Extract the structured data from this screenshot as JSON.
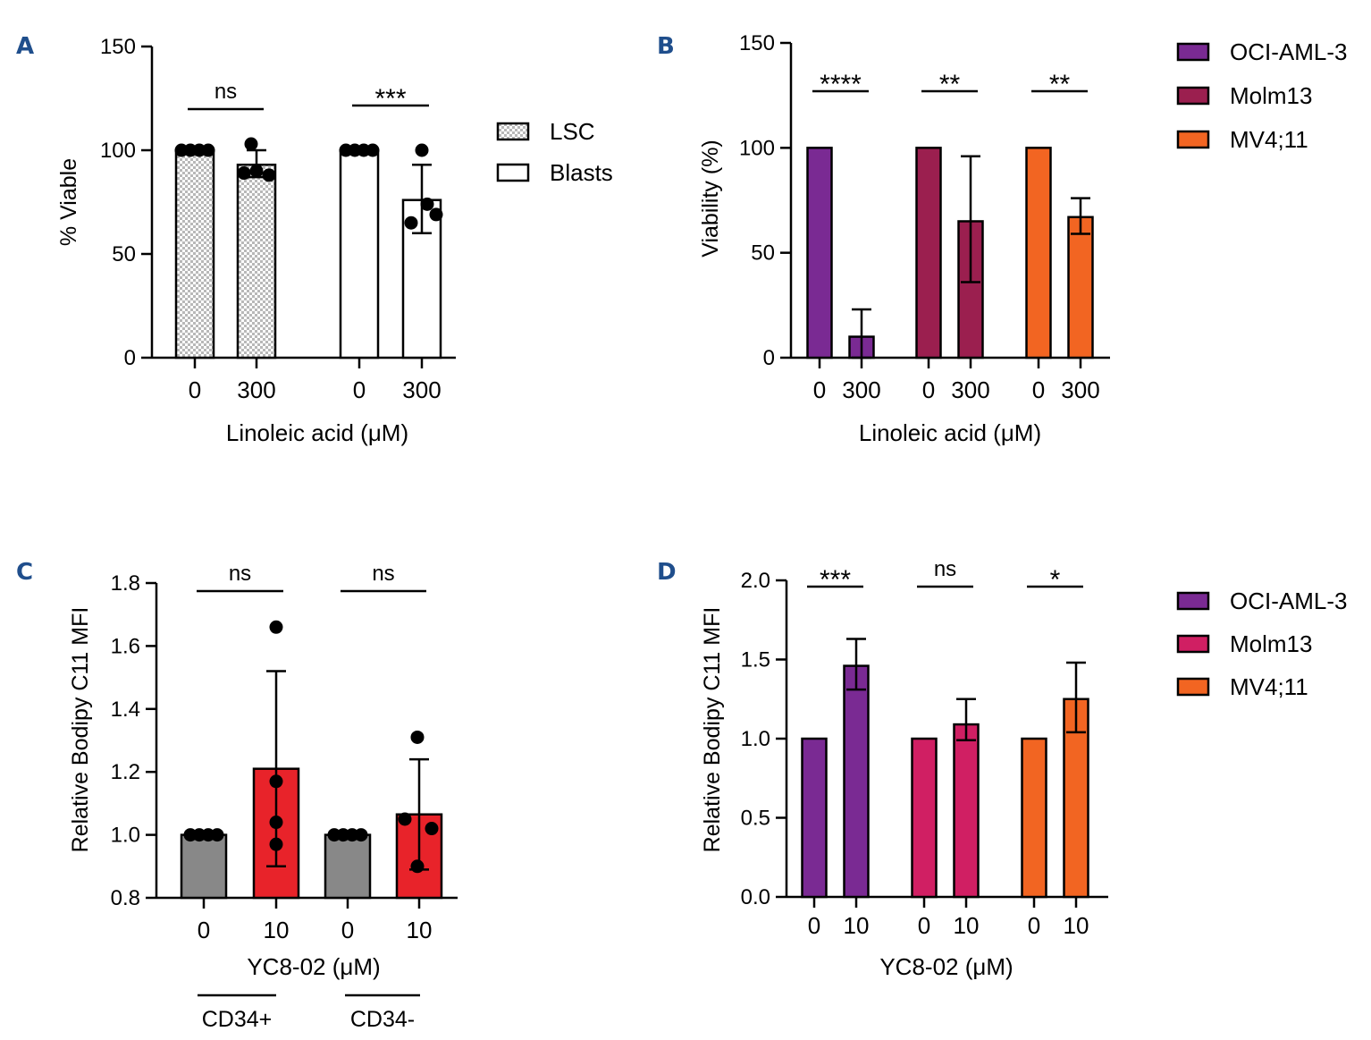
{
  "colors": {
    "axis": "#000000",
    "panel_letter": "#1f4e8c",
    "oci_purple": "#7a2a93",
    "molm13_B": "#9b1f4f",
    "molm13_D": "#d01f63",
    "mv411": "#f26522",
    "gray_bar": "#888888",
    "red_bar": "#e8232a",
    "checker_fill": "#cccccc"
  },
  "chart_data": [
    {
      "panel": "A",
      "type": "bar",
      "ylabel": "% Viable",
      "xlabel": "Linoleic acid (μM)",
      "ylim": [
        0,
        150
      ],
      "yticks": [
        "0",
        "50",
        "100",
        "150"
      ],
      "categories": [
        "0",
        "300",
        "0",
        "300"
      ],
      "groups": [
        "LSC",
        "LSC",
        "Blasts",
        "Blasts"
      ],
      "values": [
        100,
        93,
        100,
        76
      ],
      "error_upper": [
        100,
        100,
        100,
        93
      ],
      "error_lower": [
        100,
        87,
        100,
        60
      ],
      "points": [
        [
          100,
          100,
          100,
          100
        ],
        [
          103,
          89,
          90,
          88
        ],
        [
          100,
          100,
          100,
          100
        ],
        [
          100,
          74,
          65,
          69
        ]
      ],
      "significance": [
        {
          "label": "ns",
          "from": 0,
          "to": 1
        },
        {
          "label": "***",
          "from": 2,
          "to": 3
        }
      ],
      "legend": [
        {
          "label": "LSC",
          "pattern": "checker"
        },
        {
          "label": "Blasts",
          "pattern": "white"
        }
      ]
    },
    {
      "panel": "B",
      "type": "bar",
      "ylabel": "Viability (%)",
      "xlabel": "Linoleic acid (μM)",
      "ylim": [
        0,
        150
      ],
      "yticks": [
        "0",
        "50",
        "100",
        "150"
      ],
      "categories": [
        "0",
        "300",
        "0",
        "300",
        "0",
        "300"
      ],
      "series_index": [
        0,
        0,
        1,
        1,
        2,
        2
      ],
      "values": [
        100,
        10,
        100,
        65,
        100,
        67
      ],
      "error_upper": [
        100,
        23,
        100,
        96,
        100,
        76
      ],
      "error_lower": [
        100,
        0,
        100,
        36,
        100,
        59
      ],
      "significance": [
        {
          "label": "****",
          "from": 0,
          "to": 1
        },
        {
          "label": "**",
          "from": 2,
          "to": 3
        },
        {
          "label": "**",
          "from": 4,
          "to": 5
        }
      ],
      "legend": [
        "OCI-AML-3",
        "Molm13",
        "MV4;11"
      ]
    },
    {
      "panel": "C",
      "type": "bar",
      "ylabel": "Relative Bodipy C11 MFI",
      "xlabel": "YC8-02 (μM)",
      "ylim": [
        0.8,
        1.8
      ],
      "yticks": [
        "0.8",
        "1.0",
        "1.2",
        "1.4",
        "1.6",
        "1.8"
      ],
      "categories": [
        "0",
        "10",
        "0",
        "10"
      ],
      "group_labels": [
        "CD34+",
        "CD34-"
      ],
      "values": [
        1.0,
        1.21,
        1.0,
        1.065
      ],
      "error_upper": [
        1.0,
        1.52,
        1.0,
        1.24
      ],
      "error_lower": [
        1.0,
        0.9,
        1.0,
        0.89
      ],
      "points": [
        [
          1.0,
          1.0,
          1.0,
          1.0
        ],
        [
          1.66,
          1.17,
          1.04,
          0.97
        ],
        [
          1.0,
          1.0,
          1.0,
          1.0
        ],
        [
          1.31,
          1.05,
          1.02,
          0.9
        ]
      ],
      "significance": [
        {
          "label": "ns",
          "from": 0,
          "to": 1
        },
        {
          "label": "ns",
          "from": 2,
          "to": 3
        }
      ]
    },
    {
      "panel": "D",
      "type": "bar",
      "ylabel": "Relative Bodipy C11 MFI",
      "xlabel": "YC8-02 (μM)",
      "ylim": [
        0,
        2.0
      ],
      "yticks": [
        "0.0",
        "0.5",
        "1.0",
        "1.5",
        "2.0"
      ],
      "categories": [
        "0",
        "10",
        "0",
        "10",
        "0",
        "10"
      ],
      "series_index": [
        0,
        0,
        1,
        1,
        2,
        2
      ],
      "values": [
        1.0,
        1.46,
        1.0,
        1.09,
        1.0,
        1.25
      ],
      "error_upper": [
        1.0,
        1.63,
        1.0,
        1.25,
        1.0,
        1.48
      ],
      "error_lower": [
        1.0,
        1.31,
        1.0,
        0.99,
        1.0,
        1.04
      ],
      "significance": [
        {
          "label": "***",
          "from": 0,
          "to": 1
        },
        {
          "label": "ns",
          "from": 2,
          "to": 3
        },
        {
          "label": "*",
          "from": 4,
          "to": 5
        }
      ],
      "legend": [
        "OCI-AML-3",
        "Molm13",
        "MV4;11"
      ]
    }
  ]
}
